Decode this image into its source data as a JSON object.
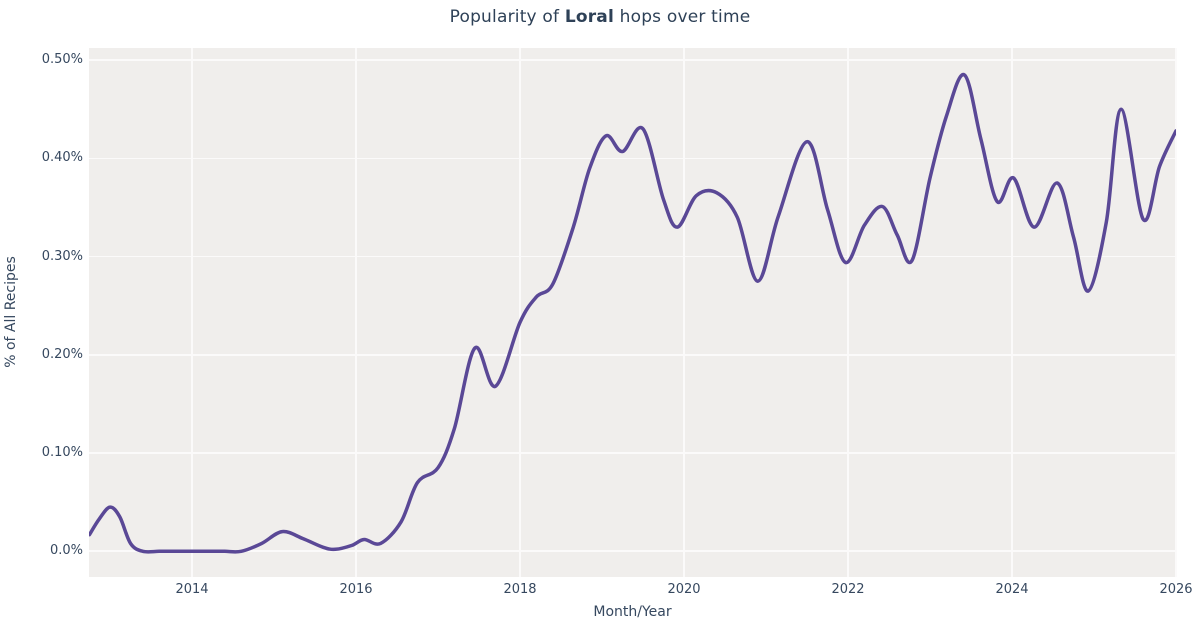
{
  "title": {
    "prefix": "Popularity of ",
    "hop_name": "Loral",
    "suffix": " hops over time"
  },
  "colors": {
    "line": "#5a4896",
    "plot_background": "#f0eeec",
    "gridline": "#fbfafa",
    "text": "#36485f",
    "title_text": "#2e4157"
  },
  "chart_data": {
    "type": "line",
    "title": "Popularity of Loral hops over time",
    "xlabel": "Month/Year",
    "ylabel": "% of All Recipes",
    "grid": true,
    "legend": false,
    "xlim": [
      2012.744,
      2026.0
    ],
    "ylim": [
      -0.0262,
      0.5124
    ],
    "x_ticks": [
      {
        "label": "2014",
        "value": 2014
      },
      {
        "label": "2016",
        "value": 2016
      },
      {
        "label": "2018",
        "value": 2018
      },
      {
        "label": "2020",
        "value": 2020
      },
      {
        "label": "2022",
        "value": 2022
      },
      {
        "label": "2024",
        "value": 2024
      },
      {
        "label": "2026",
        "value": 2026
      }
    ],
    "y_ticks": [
      {
        "label": "0.0%",
        "value": 0.0
      },
      {
        "label": "0.10%",
        "value": 0.1
      },
      {
        "label": "0.20%",
        "value": 0.2
      },
      {
        "label": "0.30%",
        "value": 0.3
      },
      {
        "label": "0.40%",
        "value": 0.4
      },
      {
        "label": "0.50%",
        "value": 0.5
      }
    ],
    "series": [
      {
        "name": "Loral",
        "color": "#5a4896",
        "points": [
          [
            2012.75,
            0.017
          ],
          [
            2012.87,
            0.033
          ],
          [
            2013.0,
            0.045
          ],
          [
            2013.12,
            0.035
          ],
          [
            2013.25,
            0.008
          ],
          [
            2013.4,
            0.0
          ],
          [
            2013.6,
            0.0
          ],
          [
            2013.8,
            0.0
          ],
          [
            2014.0,
            0.0
          ],
          [
            2014.2,
            0.0
          ],
          [
            2014.4,
            0.0
          ],
          [
            2014.6,
            0.0
          ],
          [
            2014.85,
            0.008
          ],
          [
            2015.1,
            0.02
          ],
          [
            2015.35,
            0.013
          ],
          [
            2015.6,
            0.004
          ],
          [
            2015.75,
            0.002
          ],
          [
            2015.95,
            0.006
          ],
          [
            2016.1,
            0.012
          ],
          [
            2016.3,
            0.008
          ],
          [
            2016.55,
            0.03
          ],
          [
            2016.75,
            0.07
          ],
          [
            2017.0,
            0.085
          ],
          [
            2017.2,
            0.125
          ],
          [
            2017.45,
            0.207
          ],
          [
            2017.7,
            0.168
          ],
          [
            2018.0,
            0.233
          ],
          [
            2018.2,
            0.259
          ],
          [
            2018.4,
            0.272
          ],
          [
            2018.65,
            0.33
          ],
          [
            2018.85,
            0.39
          ],
          [
            2019.05,
            0.423
          ],
          [
            2019.25,
            0.407
          ],
          [
            2019.5,
            0.43
          ],
          [
            2019.75,
            0.358
          ],
          [
            2019.92,
            0.33
          ],
          [
            2020.15,
            0.362
          ],
          [
            2020.4,
            0.365
          ],
          [
            2020.65,
            0.34
          ],
          [
            2020.9,
            0.275
          ],
          [
            2021.15,
            0.341
          ],
          [
            2021.5,
            0.417
          ],
          [
            2021.75,
            0.348
          ],
          [
            2021.97,
            0.294
          ],
          [
            2022.2,
            0.332
          ],
          [
            2022.42,
            0.351
          ],
          [
            2022.6,
            0.322
          ],
          [
            2022.78,
            0.296
          ],
          [
            2023.0,
            0.38
          ],
          [
            2023.2,
            0.443
          ],
          [
            2023.42,
            0.485
          ],
          [
            2023.62,
            0.42
          ],
          [
            2023.82,
            0.356
          ],
          [
            2024.02,
            0.38
          ],
          [
            2024.27,
            0.33
          ],
          [
            2024.55,
            0.375
          ],
          [
            2024.75,
            0.32
          ],
          [
            2024.93,
            0.265
          ],
          [
            2025.15,
            0.335
          ],
          [
            2025.33,
            0.45
          ],
          [
            2025.6,
            0.338
          ],
          [
            2025.8,
            0.392
          ],
          [
            2026.0,
            0.428
          ]
        ]
      }
    ]
  }
}
